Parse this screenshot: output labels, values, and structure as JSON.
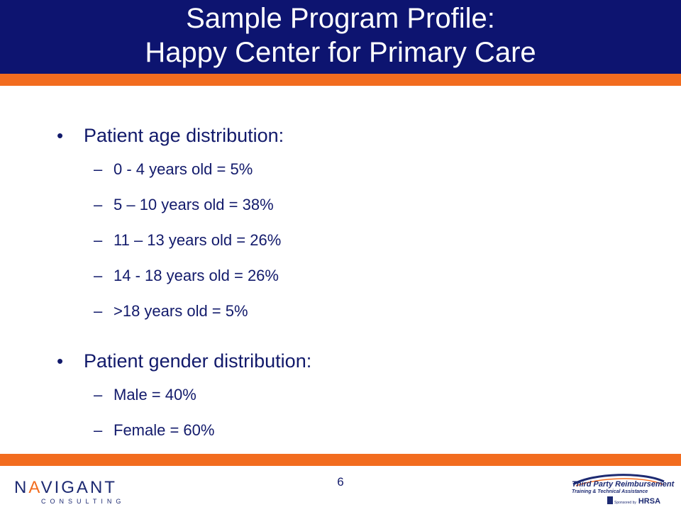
{
  "slide": {
    "title_line1": "Sample Program Profile:",
    "title_line2": "Happy Center for Primary Care",
    "bullet_symbol": "•",
    "dash_symbol": "–",
    "sections": [
      {
        "heading": "Patient age distribution:",
        "items": [
          "0 - 4 years old = 5%",
          "5 – 10 years old = 38%",
          "11 – 13 years old = 26%",
          "14 - 18 years old = 26%",
          ">18 years old = 5%"
        ]
      },
      {
        "heading": "Patient gender distribution:",
        "items": [
          "Male = 40%",
          "Female = 60%"
        ]
      }
    ],
    "page_number": "6"
  },
  "footer": {
    "left_logo": {
      "name_part1": "N",
      "name_part2": "V",
      "name_accent": "A",
      "name_part3": "IGANT",
      "subtitle": "CONSULTING"
    },
    "right_logo": {
      "line1": "Third Party Reimbursement",
      "line2": "Training & Technical Assistance",
      "sponsor": "Sponsored by",
      "org": "HRSA"
    }
  },
  "colors": {
    "header_bg": "#0d1470",
    "accent_orange": "#f26c1f",
    "text_navy": "#121a6b"
  }
}
